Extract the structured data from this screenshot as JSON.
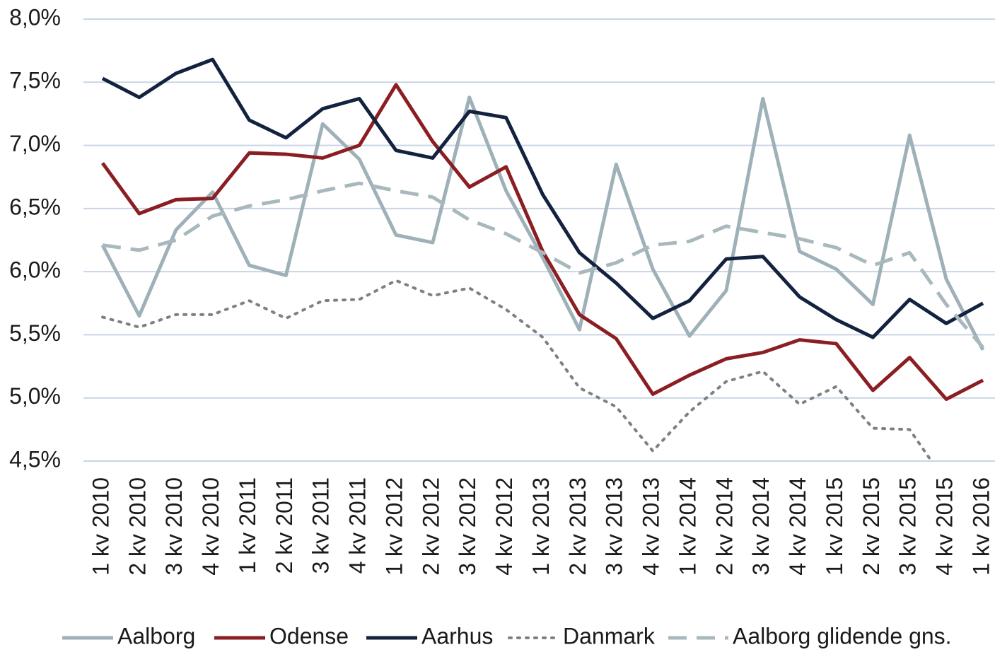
{
  "chart_data": {
    "type": "line",
    "categories": [
      "1 kv 2010",
      "2 kv 2010",
      "3 kv 2010",
      "4 kv 2010",
      "1 kv 2011",
      "2 kv 2011",
      "3 kv 2011",
      "4 kv 2011",
      "1 kv 2012",
      "2 kv 2012",
      "3 kv 2012",
      "4 kv 2012",
      "1 kv 2013",
      "2 kv 2013",
      "3 kv 2013",
      "4 kv 2013",
      "1 kv 2014",
      "2 kv 2014",
      "3 kv 2014",
      "4 kv 2014",
      "1 kv 2015",
      "2 kv 2015",
      "3 kv 2015",
      "4 kv 2015",
      "1 kv 2016"
    ],
    "series": [
      {
        "name": "Aalborg",
        "color": "#9fb1b8",
        "style": "solid",
        "values": [
          6.21,
          5.65,
          6.33,
          6.63,
          6.05,
          5.97,
          7.17,
          6.89,
          6.29,
          6.23,
          7.38,
          6.64,
          6.11,
          5.54,
          6.85,
          6.02,
          5.49,
          5.85,
          7.37,
          6.16,
          6.02,
          5.74,
          7.08,
          5.94,
          5.38
        ]
      },
      {
        "name": "Odense",
        "color": "#8b1e22",
        "style": "solid",
        "values": [
          6.86,
          6.46,
          6.57,
          6.58,
          6.94,
          6.93,
          6.9,
          7.0,
          7.48,
          7.03,
          6.67,
          6.83,
          6.16,
          5.66,
          5.47,
          5.03,
          5.18,
          5.31,
          5.36,
          5.46,
          5.43,
          5.06,
          5.32,
          4.99,
          5.14
        ]
      },
      {
        "name": "Aarhus",
        "color": "#13223f",
        "style": "solid",
        "values": [
          7.53,
          7.38,
          7.57,
          7.68,
          7.2,
          7.06,
          7.29,
          7.37,
          6.96,
          6.9,
          7.27,
          7.22,
          6.61,
          6.15,
          5.91,
          5.63,
          5.77,
          6.1,
          6.12,
          5.8,
          5.62,
          5.48,
          5.78,
          5.59,
          5.75
        ]
      },
      {
        "name": "Danmark",
        "color": "#808080",
        "style": "dotted",
        "values": [
          5.64,
          5.56,
          5.66,
          5.66,
          5.77,
          5.63,
          5.77,
          5.78,
          5.93,
          5.81,
          5.87,
          5.7,
          5.48,
          5.08,
          4.93,
          4.58,
          4.89,
          5.13,
          5.21,
          4.95,
          5.09,
          4.76,
          4.75,
          4.33,
          null
        ]
      },
      {
        "name": "Aalborg glidende gns.",
        "color": "#a8b8bd",
        "style": "dashed",
        "values": [
          6.21,
          6.17,
          6.25,
          6.44,
          6.52,
          6.57,
          6.64,
          6.7,
          6.64,
          6.59,
          6.41,
          6.3,
          6.15,
          5.99,
          6.07,
          6.21,
          6.24,
          6.36,
          6.31,
          6.26,
          6.19,
          6.05,
          6.15,
          5.74,
          5.4
        ]
      }
    ],
    "ylim": [
      4.5,
      8.0
    ],
    "yticks": [
      {
        "value": 4.5,
        "label": "4,5%"
      },
      {
        "value": 5.0,
        "label": "5,0%"
      },
      {
        "value": 5.5,
        "label": "5,5%"
      },
      {
        "value": 6.0,
        "label": "6,0%"
      },
      {
        "value": 6.5,
        "label": "6,5%"
      },
      {
        "value": 7.0,
        "label": "7,0%"
      },
      {
        "value": 7.5,
        "label": "7,5%"
      },
      {
        "value": 8.0,
        "label": "8,0%"
      }
    ],
    "grid": true,
    "legend": "bottom"
  }
}
